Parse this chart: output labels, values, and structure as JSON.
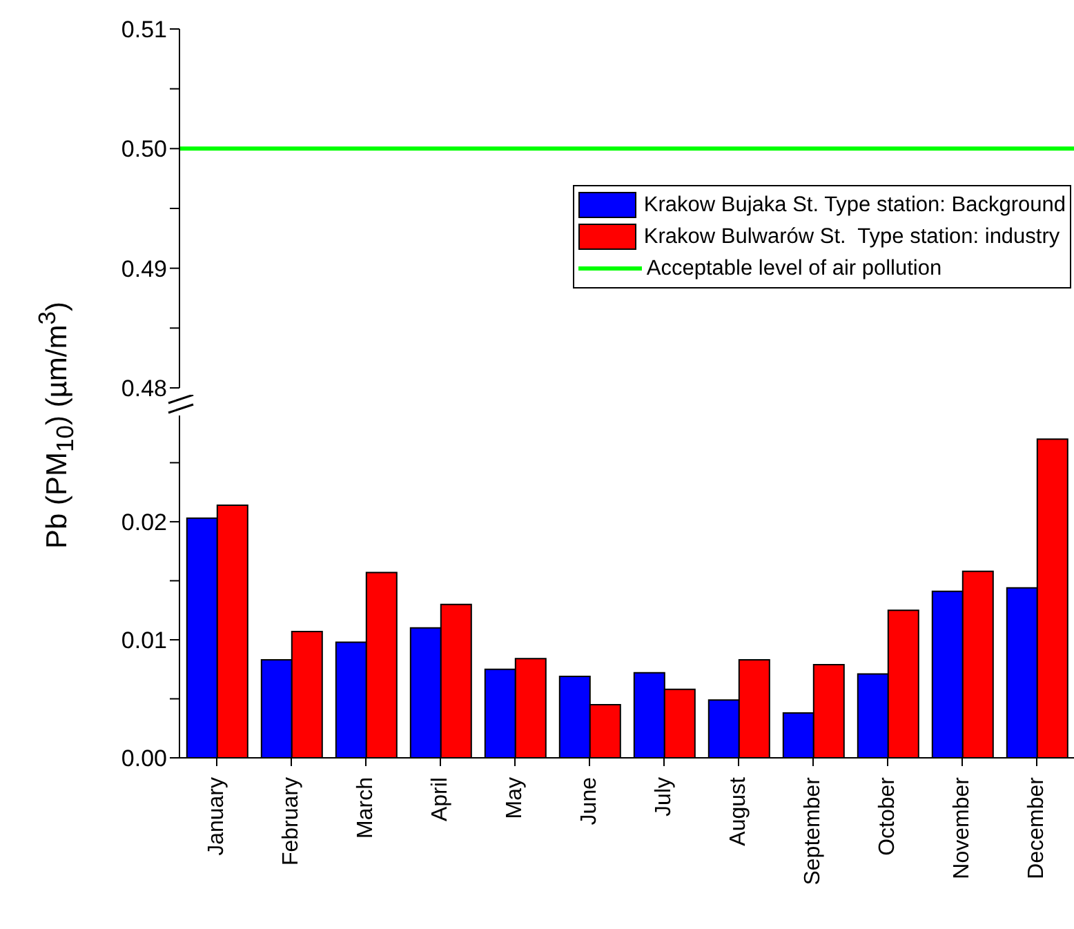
{
  "chart_data": [
    {
      "type": "bar",
      "categories": [
        null,
        null,
        null,
        null,
        null,
        null,
        null,
        null,
        null,
        null,
        null,
        null
      ],
      "ylim": [
        0.48,
        0.51
      ],
      "yticks": [
        0.48,
        {
          "value": 0.485,
          "label": null
        },
        0.49,
        {
          "value": 0.495,
          "label": null
        },
        {
          "value": 0.5,
          "label": "0.50"
        },
        {
          "value": 0.505,
          "label": null
        },
        0.51
      ],
      "tick_labels": "y",
      "ref_lines": [
        {
          "axis": "y",
          "value": 0.5,
          "label": "Acceptable level of air pollution",
          "color": "#00ff00"
        }
      ]
    },
    {
      "type": "bar",
      "categories": [
        "January",
        "February",
        "March",
        "April",
        "May",
        "June",
        "July",
        "August",
        "September",
        "October",
        "November",
        "December"
      ],
      "legend": "top right",
      "ylabel": "Pb (PM$_{10}$) (µm/m$^{3}$)",
      "ylim": [
        0,
        0.029
      ],
      "yticks": [
        {
          "value": 0,
          "label": "0.00"
        },
        {
          "value": 0.005,
          "label": null
        },
        0.01,
        {
          "value": 0.015,
          "label": null
        },
        0.02,
        {
          "value": 0.025,
          "label": null
        }
      ],
      "series": [
        {
          "name": "Krakow Bujaka St. Type station: Background",
          "color": "#0000ff",
          "values": [
            0.0203,
            0.0083,
            0.0098,
            0.011,
            0.0075,
            0.0069,
            0.0072,
            0.0049,
            0.0038,
            0.0071,
            0.0141,
            0.0144
          ]
        },
        {
          "name": "Krakow Bulwarów St.  Type station: industry",
          "color": "#ff0000",
          "values": [
            0.0214,
            0.0107,
            0.0157,
            0.013,
            0.0084,
            0.0045,
            0.0058,
            0.0083,
            0.0079,
            0.0125,
            0.0158,
            0.027
          ]
        }
      ]
    }
  ]
}
